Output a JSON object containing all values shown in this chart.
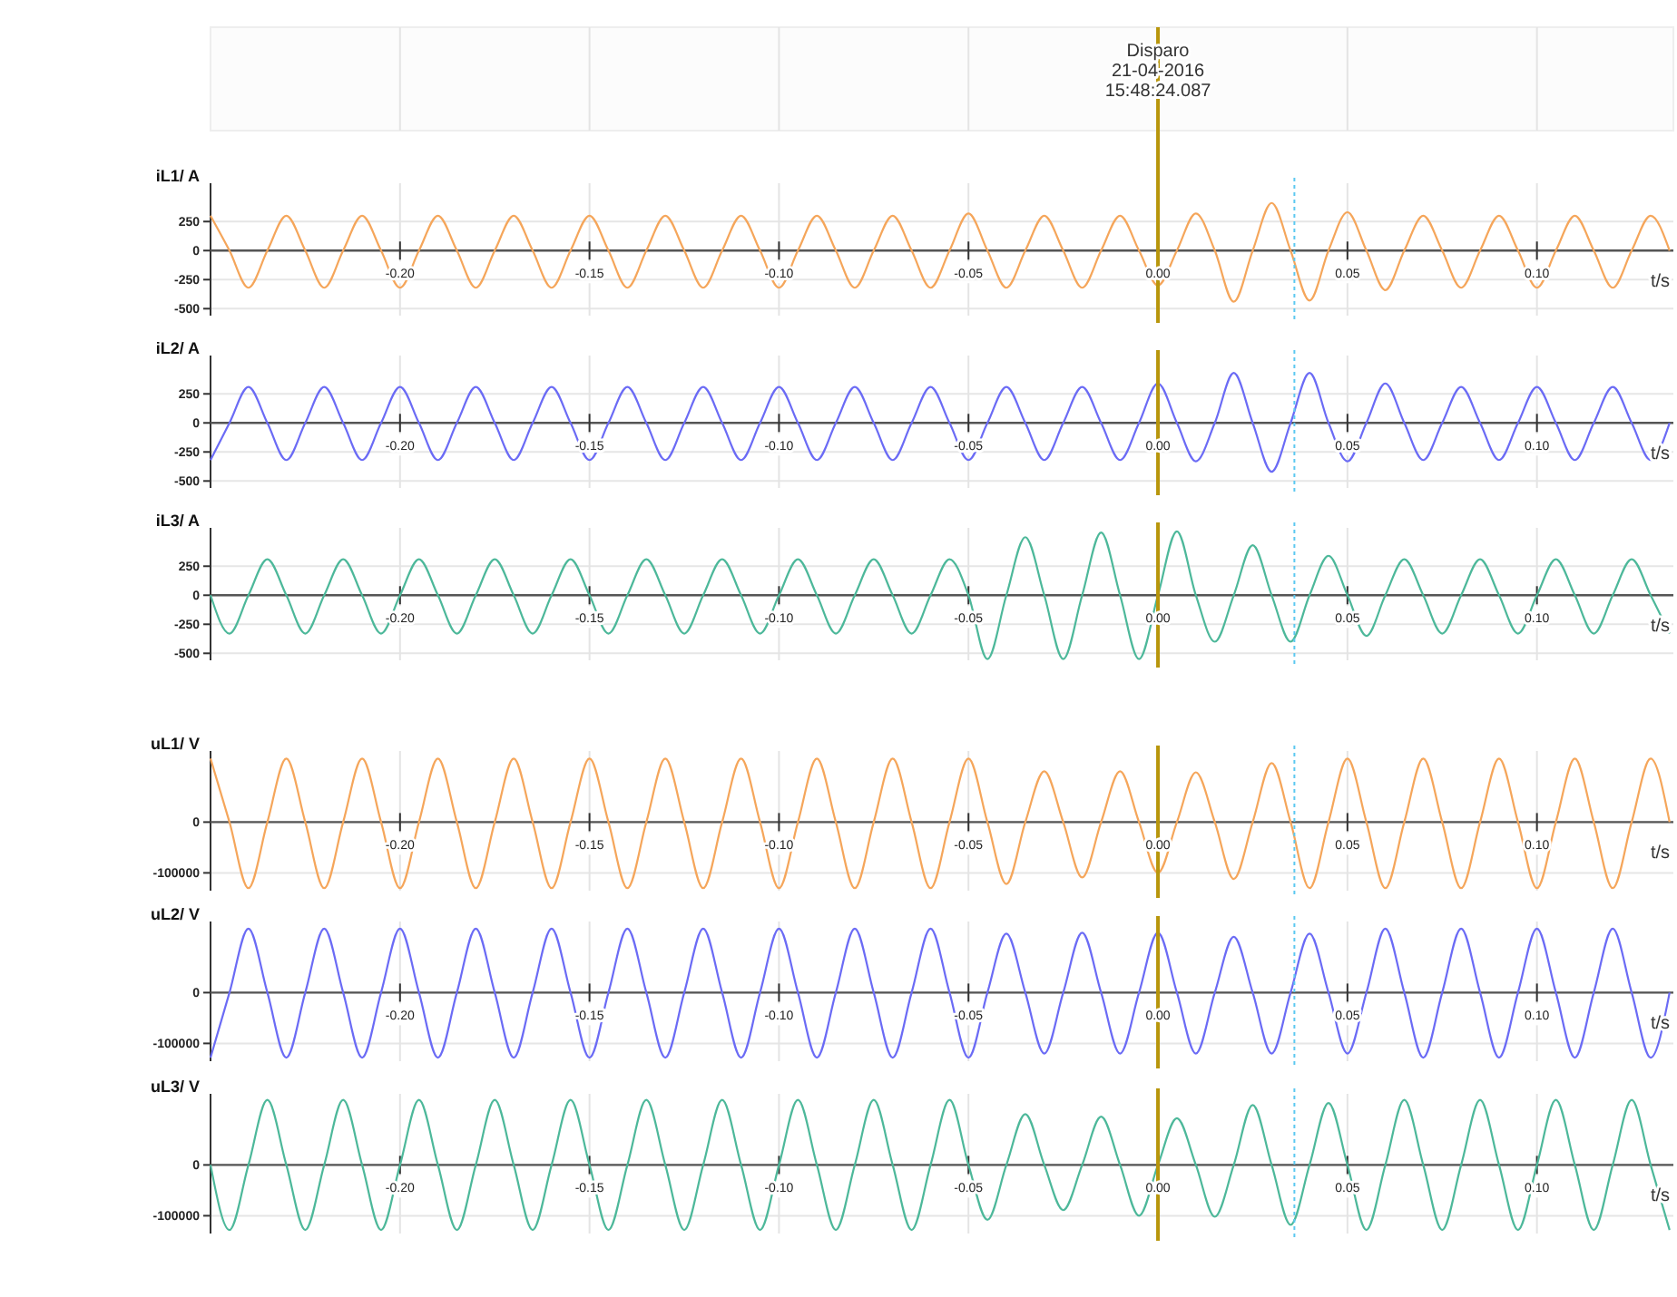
{
  "chart_data": [
    {
      "type": "line",
      "ylabel": "iL1/ A",
      "xlabel": "t/s",
      "grid": true,
      "xlim": [
        -0.25,
        0.136
      ],
      "ylim": [
        -560,
        580
      ],
      "xticks": [
        {
          "value": -0.2,
          "label": "-0.20"
        },
        {
          "value": -0.15,
          "label": "-0.15"
        },
        {
          "value": -0.1,
          "label": "-0.10"
        },
        {
          "value": -0.05,
          "label": "-0.05"
        },
        {
          "value": 0,
          "label": "0.00"
        },
        {
          "value": 0.05,
          "label": "0.05"
        },
        {
          "value": 0.1,
          "label": "0.10"
        }
      ],
      "yticks": [
        -500,
        -250,
        0,
        250
      ],
      "annotations": [
        "Disparo\n21-04-2016\n15:48:24.087"
      ],
      "ref_lines": [
        {
          "axis": "x",
          "value": 0,
          "color": "#b8960c"
        },
        {
          "axis": "x",
          "value": 0.036,
          "color": "#5bc8f0",
          "line_style": "dotted"
        }
      ],
      "x": [
        -0.25,
        -0.245,
        -0.24,
        -0.235,
        -0.23,
        -0.225,
        -0.22,
        -0.215,
        -0.21,
        -0.205,
        -0.2,
        -0.195,
        -0.19,
        -0.185,
        -0.18,
        -0.175,
        -0.17,
        -0.165,
        -0.16,
        -0.155,
        -0.15,
        -0.145,
        -0.14,
        -0.135,
        -0.13,
        -0.125,
        -0.12,
        -0.115,
        -0.11,
        -0.105,
        -0.1,
        -0.095,
        -0.09,
        -0.085,
        -0.08,
        -0.075,
        -0.07,
        -0.065,
        -0.06,
        -0.055,
        -0.05,
        -0.045,
        -0.04,
        -0.035,
        -0.03,
        -0.025,
        -0.02,
        -0.015,
        -0.01,
        -0.005,
        0,
        0.005,
        0.01,
        0.015,
        0.02,
        0.025,
        0.03,
        0.035,
        0.04,
        0.045,
        0.05,
        0.055,
        0.06,
        0.065,
        0.07,
        0.075,
        0.08,
        0.085,
        0.09,
        0.095,
        0.1,
        0.105,
        0.11,
        0.115,
        0.12,
        0.125,
        0.13,
        0.135
      ],
      "series": [
        {
          "color": "#f5a65b",
          "values": [
            300,
            0,
            -320,
            0,
            300,
            0,
            -320,
            0,
            300,
            0,
            -320,
            0,
            300,
            0,
            -320,
            0,
            300,
            0,
            -320,
            0,
            300,
            0,
            -320,
            0,
            300,
            0,
            -320,
            0,
            300,
            0,
            -320,
            0,
            300,
            0,
            -320,
            0,
            300,
            0,
            -320,
            0,
            320,
            0,
            -320,
            0,
            300,
            0,
            -320,
            0,
            300,
            0,
            -300,
            0,
            320,
            0,
            -440,
            0,
            410,
            0,
            -430,
            0,
            330,
            0,
            -340,
            0,
            300,
            0,
            -320,
            0,
            300,
            0,
            -320,
            0,
            300,
            0,
            -320,
            0,
            300,
            0
          ]
        }
      ]
    },
    {
      "type": "line",
      "ylabel": "iL2/ A",
      "xlabel": "t/s",
      "grid": true,
      "xlim": [
        -0.25,
        0.136
      ],
      "ylim": [
        -560,
        580
      ],
      "xticks": [
        {
          "value": -0.2,
          "label": "-0.20"
        },
        {
          "value": -0.15,
          "label": "-0.15"
        },
        {
          "value": -0.1,
          "label": "-0.10"
        },
        {
          "value": -0.05,
          "label": "-0.05"
        },
        {
          "value": 0,
          "label": "0.00"
        },
        {
          "value": 0.05,
          "label": "0.05"
        },
        {
          "value": 0.1,
          "label": "0.10"
        }
      ],
      "yticks": [
        -500,
        -250,
        0,
        250
      ],
      "ref_lines": [
        {
          "axis": "x",
          "value": 0,
          "color": "#b8960c"
        },
        {
          "axis": "x",
          "value": 0.036,
          "color": "#5bc8f0",
          "line_style": "dotted"
        }
      ],
      "x": [
        -0.25,
        -0.245,
        -0.24,
        -0.235,
        -0.23,
        -0.225,
        -0.22,
        -0.215,
        -0.21,
        -0.205,
        -0.2,
        -0.195,
        -0.19,
        -0.185,
        -0.18,
        -0.175,
        -0.17,
        -0.165,
        -0.16,
        -0.155,
        -0.15,
        -0.145,
        -0.14,
        -0.135,
        -0.13,
        -0.125,
        -0.12,
        -0.115,
        -0.11,
        -0.105,
        -0.1,
        -0.095,
        -0.09,
        -0.085,
        -0.08,
        -0.075,
        -0.07,
        -0.065,
        -0.06,
        -0.055,
        -0.05,
        -0.045,
        -0.04,
        -0.035,
        -0.03,
        -0.025,
        -0.02,
        -0.015,
        -0.01,
        -0.005,
        0,
        0.005,
        0.01,
        0.015,
        0.02,
        0.025,
        0.03,
        0.035,
        0.04,
        0.045,
        0.05,
        0.055,
        0.06,
        0.065,
        0.07,
        0.075,
        0.08,
        0.085,
        0.09,
        0.095,
        0.1,
        0.105,
        0.11,
        0.115,
        0.12,
        0.125,
        0.13,
        0.135
      ],
      "series": [
        {
          "color": "#6b6bf5",
          "values": [
            -320,
            0,
            310,
            0,
            -320,
            0,
            310,
            0,
            -320,
            0,
            310,
            0,
            -320,
            0,
            310,
            0,
            -320,
            0,
            310,
            0,
            -320,
            0,
            310,
            0,
            -320,
            0,
            310,
            0,
            -320,
            0,
            310,
            0,
            -320,
            0,
            310,
            0,
            -320,
            0,
            310,
            0,
            -320,
            0,
            310,
            0,
            -320,
            0,
            310,
            0,
            -320,
            0,
            340,
            0,
            -330,
            0,
            430,
            0,
            -420,
            0,
            430,
            0,
            -330,
            0,
            340,
            0,
            -320,
            0,
            310,
            0,
            -320,
            0,
            310,
            0,
            -320,
            0,
            310,
            0,
            -320,
            0
          ]
        }
      ]
    },
    {
      "type": "line",
      "ylabel": "iL3/ A",
      "xlabel": "t/s",
      "grid": true,
      "xlim": [
        -0.25,
        0.136
      ],
      "ylim": [
        -560,
        580
      ],
      "xticks": [
        {
          "value": -0.2,
          "label": "-0.20"
        },
        {
          "value": -0.15,
          "label": "-0.15"
        },
        {
          "value": -0.1,
          "label": "-0.10"
        },
        {
          "value": -0.05,
          "label": "-0.05"
        },
        {
          "value": 0,
          "label": "0.00"
        },
        {
          "value": 0.05,
          "label": "0.05"
        },
        {
          "value": 0.1,
          "label": "0.10"
        }
      ],
      "yticks": [
        -500,
        -250,
        0,
        250
      ],
      "ref_lines": [
        {
          "axis": "x",
          "value": 0,
          "color": "#b8960c"
        },
        {
          "axis": "x",
          "value": 0.036,
          "color": "#5bc8f0",
          "line_style": "dotted"
        }
      ],
      "x": [
        -0.25,
        -0.245,
        -0.24,
        -0.235,
        -0.23,
        -0.225,
        -0.22,
        -0.215,
        -0.21,
        -0.205,
        -0.2,
        -0.195,
        -0.19,
        -0.185,
        -0.18,
        -0.175,
        -0.17,
        -0.165,
        -0.16,
        -0.155,
        -0.15,
        -0.145,
        -0.14,
        -0.135,
        -0.13,
        -0.125,
        -0.12,
        -0.115,
        -0.11,
        -0.105,
        -0.1,
        -0.095,
        -0.09,
        -0.085,
        -0.08,
        -0.075,
        -0.07,
        -0.065,
        -0.06,
        -0.055,
        -0.05,
        -0.045,
        -0.04,
        -0.035,
        -0.03,
        -0.025,
        -0.02,
        -0.015,
        -0.01,
        -0.005,
        0,
        0.005,
        0.01,
        0.015,
        0.02,
        0.025,
        0.03,
        0.035,
        0.04,
        0.045,
        0.05,
        0.055,
        0.06,
        0.065,
        0.07,
        0.075,
        0.08,
        0.085,
        0.09,
        0.095,
        0.1,
        0.105,
        0.11,
        0.115,
        0.12,
        0.125,
        0.13,
        0.135
      ],
      "series": [
        {
          "color": "#4db89a",
          "values": [
            0,
            -330,
            0,
            310,
            0,
            -330,
            0,
            310,
            0,
            -330,
            0,
            310,
            0,
            -330,
            0,
            310,
            0,
            -330,
            0,
            310,
            0,
            -330,
            0,
            310,
            0,
            -330,
            0,
            310,
            0,
            -330,
            0,
            310,
            0,
            -330,
            0,
            310,
            0,
            -330,
            0,
            310,
            0,
            -550,
            0,
            500,
            0,
            -550,
            0,
            540,
            0,
            -550,
            0,
            550,
            0,
            -400,
            0,
            430,
            0,
            -400,
            0,
            340,
            0,
            -350,
            0,
            310,
            0,
            -330,
            0,
            310,
            0,
            -330,
            0,
            310,
            0,
            -330,
            0,
            310,
            0,
            -330
          ]
        }
      ]
    },
    {
      "type": "line",
      "ylabel": "uL1/ V",
      "xlabel": "t/s",
      "grid": true,
      "xlim": [
        -0.25,
        0.136
      ],
      "ylim": [
        -135000,
        140000
      ],
      "xticks": [
        {
          "value": -0.2,
          "label": "-0.20"
        },
        {
          "value": -0.15,
          "label": "-0.15"
        },
        {
          "value": -0.1,
          "label": "-0.10"
        },
        {
          "value": -0.05,
          "label": "-0.05"
        },
        {
          "value": 0,
          "label": "0.00"
        },
        {
          "value": 0.05,
          "label": "0.05"
        },
        {
          "value": 0.1,
          "label": "0.10"
        }
      ],
      "yticks": [
        -100000,
        0
      ],
      "ref_lines": [
        {
          "axis": "x",
          "value": 0,
          "color": "#b8960c"
        },
        {
          "axis": "x",
          "value": 0.036,
          "color": "#5bc8f0",
          "line_style": "dotted"
        }
      ],
      "x": [
        -0.25,
        -0.245,
        -0.24,
        -0.235,
        -0.23,
        -0.225,
        -0.22,
        -0.215,
        -0.21,
        -0.205,
        -0.2,
        -0.195,
        -0.19,
        -0.185,
        -0.18,
        -0.175,
        -0.17,
        -0.165,
        -0.16,
        -0.155,
        -0.15,
        -0.145,
        -0.14,
        -0.135,
        -0.13,
        -0.125,
        -0.12,
        -0.115,
        -0.11,
        -0.105,
        -0.1,
        -0.095,
        -0.09,
        -0.085,
        -0.08,
        -0.075,
        -0.07,
        -0.065,
        -0.06,
        -0.055,
        -0.05,
        -0.045,
        -0.04,
        -0.035,
        -0.03,
        -0.025,
        -0.02,
        -0.015,
        -0.01,
        -0.005,
        0,
        0.005,
        0.01,
        0.015,
        0.02,
        0.025,
        0.03,
        0.035,
        0.04,
        0.045,
        0.05,
        0.055,
        0.06,
        0.065,
        0.07,
        0.075,
        0.08,
        0.085,
        0.09,
        0.095,
        0.1,
        0.105,
        0.11,
        0.115,
        0.12,
        0.125,
        0.13,
        0.135
      ],
      "series": [
        {
          "color": "#f5a65b",
          "values": [
            125000,
            0,
            -130000,
            0,
            125000,
            0,
            -130000,
            0,
            125000,
            0,
            -130000,
            0,
            125000,
            0,
            -130000,
            0,
            125000,
            0,
            -130000,
            0,
            125000,
            0,
            -130000,
            0,
            125000,
            0,
            -130000,
            0,
            125000,
            0,
            -130000,
            0,
            125000,
            0,
            -130000,
            0,
            125000,
            0,
            -130000,
            0,
            125000,
            0,
            -122000,
            0,
            100000,
            0,
            -109000,
            0,
            100000,
            0,
            -100000,
            0,
            98000,
            0,
            -112000,
            0,
            116000,
            0,
            -130000,
            0,
            125000,
            0,
            -130000,
            0,
            125000,
            0,
            -130000,
            0,
            125000,
            0,
            -130000,
            0,
            125000,
            0,
            -130000,
            0,
            125000,
            0
          ]
        }
      ]
    },
    {
      "type": "line",
      "ylabel": "uL2/ V",
      "xlabel": "t/s",
      "grid": true,
      "xlim": [
        -0.25,
        0.136
      ],
      "ylim": [
        -135000,
        140000
      ],
      "xticks": [
        {
          "value": -0.2,
          "label": "-0.20"
        },
        {
          "value": -0.15,
          "label": "-0.15"
        },
        {
          "value": -0.1,
          "label": "-0.10"
        },
        {
          "value": -0.05,
          "label": "-0.05"
        },
        {
          "value": 0,
          "label": "0.00"
        },
        {
          "value": 0.05,
          "label": "0.05"
        },
        {
          "value": 0.1,
          "label": "0.10"
        }
      ],
      "yticks": [
        -100000,
        0
      ],
      "ref_lines": [
        {
          "axis": "x",
          "value": 0,
          "color": "#b8960c"
        },
        {
          "axis": "x",
          "value": 0.036,
          "color": "#5bc8f0",
          "line_style": "dotted"
        }
      ],
      "x": [
        -0.25,
        -0.245,
        -0.24,
        -0.235,
        -0.23,
        -0.225,
        -0.22,
        -0.215,
        -0.21,
        -0.205,
        -0.2,
        -0.195,
        -0.19,
        -0.185,
        -0.18,
        -0.175,
        -0.17,
        -0.165,
        -0.16,
        -0.155,
        -0.15,
        -0.145,
        -0.14,
        -0.135,
        -0.13,
        -0.125,
        -0.12,
        -0.115,
        -0.11,
        -0.105,
        -0.1,
        -0.095,
        -0.09,
        -0.085,
        -0.08,
        -0.075,
        -0.07,
        -0.065,
        -0.06,
        -0.055,
        -0.05,
        -0.045,
        -0.04,
        -0.035,
        -0.03,
        -0.025,
        -0.02,
        -0.015,
        -0.01,
        -0.005,
        0,
        0.005,
        0.01,
        0.015,
        0.02,
        0.025,
        0.03,
        0.035,
        0.04,
        0.045,
        0.05,
        0.055,
        0.06,
        0.065,
        0.07,
        0.075,
        0.08,
        0.085,
        0.09,
        0.095,
        0.1,
        0.105,
        0.11,
        0.115,
        0.12,
        0.125,
        0.13,
        0.135
      ],
      "series": [
        {
          "color": "#6b6bf5",
          "values": [
            -128000,
            0,
            126000,
            0,
            -128000,
            0,
            126000,
            0,
            -128000,
            0,
            126000,
            0,
            -128000,
            0,
            126000,
            0,
            -128000,
            0,
            126000,
            0,
            -128000,
            0,
            126000,
            0,
            -128000,
            0,
            126000,
            0,
            -128000,
            0,
            126000,
            0,
            -128000,
            0,
            126000,
            0,
            -128000,
            0,
            126000,
            0,
            -128000,
            0,
            116000,
            0,
            -120000,
            0,
            118000,
            0,
            -120000,
            0,
            118000,
            0,
            -120000,
            0,
            110000,
            0,
            -120000,
            0,
            116000,
            0,
            -120000,
            0,
            126000,
            0,
            -128000,
            0,
            126000,
            0,
            -128000,
            0,
            126000,
            0,
            -128000,
            0,
            126000,
            0,
            -128000,
            0
          ]
        }
      ]
    },
    {
      "type": "line",
      "ylabel": "uL3/ V",
      "xlabel": "t/s",
      "grid": true,
      "xlim": [
        -0.25,
        0.136
      ],
      "ylim": [
        -135000,
        140000
      ],
      "xticks": [
        {
          "value": -0.2,
          "label": "-0.20"
        },
        {
          "value": -0.15,
          "label": "-0.15"
        },
        {
          "value": -0.1,
          "label": "-0.10"
        },
        {
          "value": -0.05,
          "label": "-0.05"
        },
        {
          "value": 0,
          "label": "0.00"
        },
        {
          "value": 0.05,
          "label": "0.05"
        },
        {
          "value": 0.1,
          "label": "0.10"
        }
      ],
      "yticks": [
        -100000,
        0
      ],
      "ref_lines": [
        {
          "axis": "x",
          "value": 0,
          "color": "#b8960c"
        },
        {
          "axis": "x",
          "value": 0.036,
          "color": "#5bc8f0",
          "line_style": "dotted"
        }
      ],
      "x": [
        -0.25,
        -0.245,
        -0.24,
        -0.235,
        -0.23,
        -0.225,
        -0.22,
        -0.215,
        -0.21,
        -0.205,
        -0.2,
        -0.195,
        -0.19,
        -0.185,
        -0.18,
        -0.175,
        -0.17,
        -0.165,
        -0.16,
        -0.155,
        -0.15,
        -0.145,
        -0.14,
        -0.135,
        -0.13,
        -0.125,
        -0.12,
        -0.115,
        -0.11,
        -0.105,
        -0.1,
        -0.095,
        -0.09,
        -0.085,
        -0.08,
        -0.075,
        -0.07,
        -0.065,
        -0.06,
        -0.055,
        -0.05,
        -0.045,
        -0.04,
        -0.035,
        -0.03,
        -0.025,
        -0.02,
        -0.015,
        -0.01,
        -0.005,
        0,
        0.005,
        0.01,
        0.015,
        0.02,
        0.025,
        0.03,
        0.035,
        0.04,
        0.045,
        0.05,
        0.055,
        0.06,
        0.065,
        0.07,
        0.075,
        0.08,
        0.085,
        0.09,
        0.095,
        0.1,
        0.105,
        0.11,
        0.115,
        0.12,
        0.125,
        0.13,
        0.135
      ],
      "series": [
        {
          "color": "#4db89a",
          "values": [
            0,
            -128000,
            0,
            128000,
            0,
            -128000,
            0,
            128000,
            0,
            -128000,
            0,
            128000,
            0,
            -128000,
            0,
            128000,
            0,
            -128000,
            0,
            128000,
            0,
            -128000,
            0,
            128000,
            0,
            -128000,
            0,
            128000,
            0,
            -128000,
            0,
            128000,
            0,
            -128000,
            0,
            128000,
            0,
            -128000,
            0,
            128000,
            0,
            -108000,
            0,
            100000,
            0,
            -89000,
            0,
            95000,
            0,
            -100000,
            0,
            92000,
            0,
            -102000,
            0,
            118000,
            0,
            -118000,
            0,
            122000,
            0,
            -128000,
            0,
            128000,
            0,
            -128000,
            0,
            128000,
            0,
            -128000,
            0,
            128000,
            0,
            -128000,
            0,
            128000,
            0,
            -128000
          ]
        }
      ]
    }
  ]
}
